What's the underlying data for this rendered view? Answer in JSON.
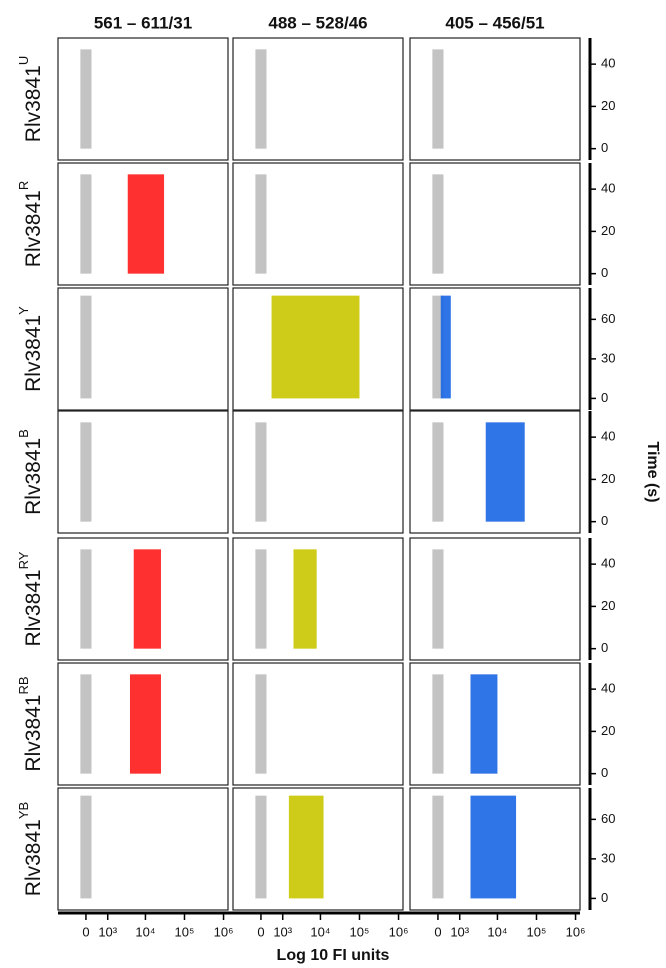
{
  "figure": {
    "columns": [
      "561 – 611/31",
      "488 – 528/46",
      "405 – 456/51"
    ],
    "x_label": "Log 10 FI units",
    "y_label": "Time (s)",
    "xlim": [
      -1500,
      1300000
    ],
    "xticks": [
      0,
      {
        "value": 1000,
        "label": "10³"
      },
      {
        "value": 10000,
        "label": "10⁴"
      },
      {
        "value": 100000,
        "label": "10⁵"
      },
      {
        "value": 1000000,
        "label": "10⁶"
      }
    ],
    "rows": [
      {
        "name": "Rlv3841",
        "sup": "U",
        "ylim": [
          -3,
          50
        ],
        "yticks": [
          0,
          20,
          40
        ],
        "panels": [
          [
            {
              "range": [
                -200,
                200
              ],
              "time": [
                0,
                47
              ],
              "color": "#bdbdbd"
            }
          ],
          [
            {
              "range": [
                -200,
                200
              ],
              "time": [
                0,
                47
              ],
              "color": "#bdbdbd"
            }
          ],
          [
            {
              "range": [
                -200,
                200
              ],
              "time": [
                0,
                47
              ],
              "color": "#bdbdbd"
            }
          ]
        ]
      },
      {
        "name": "Rlv3841",
        "sup": "R",
        "ylim": [
          -3,
          50
        ],
        "yticks": [
          0,
          20,
          40
        ],
        "panels": [
          [
            {
              "range": [
                -200,
                200
              ],
              "time": [
                0,
                47
              ],
              "color": "#bdbdbd"
            },
            {
              "range": [
                3500,
                30000
              ],
              "time": [
                0,
                47
              ],
              "color": "#ff1a1a"
            }
          ],
          [
            {
              "range": [
                -200,
                200
              ],
              "time": [
                0,
                47
              ],
              "color": "#bdbdbd"
            }
          ],
          [
            {
              "range": [
                -200,
                200
              ],
              "time": [
                0,
                47
              ],
              "color": "#bdbdbd"
            }
          ]
        ]
      },
      {
        "name": "Rlv3841",
        "sup": "Y",
        "ylim": [
          -5,
          80
        ],
        "yticks": [
          0,
          30,
          60
        ],
        "panels": [
          [
            {
              "range": [
                -200,
                200
              ],
              "time": [
                0,
                78
              ],
              "color": "#bdbdbd"
            }
          ],
          [
            {
              "range": [
                400,
                100000
              ],
              "time": [
                0,
                78
              ],
              "color": "#c9c700"
            }
          ],
          [
            {
              "range": [
                -200,
                200
              ],
              "time": [
                0,
                78
              ],
              "color": "#bdbdbd"
            },
            {
              "range": [
                100,
                500
              ],
              "time": [
                0,
                78
              ],
              "color": "#1a66e6"
            }
          ]
        ]
      },
      {
        "name": "Rlv3841",
        "sup": "B",
        "ylim": [
          -3,
          50
        ],
        "yticks": [
          0,
          20,
          40
        ],
        "panels": [
          [
            {
              "range": [
                -200,
                200
              ],
              "time": [
                0,
                47
              ],
              "color": "#bdbdbd"
            }
          ],
          [
            {
              "range": [
                -200,
                200
              ],
              "time": [
                0,
                47
              ],
              "color": "#bdbdbd"
            }
          ],
          [
            {
              "range": [
                -200,
                200
              ],
              "time": [
                0,
                47
              ],
              "color": "#bdbdbd"
            },
            {
              "range": [
                5000,
                50000
              ],
              "time": [
                0,
                47
              ],
              "color": "#1a66e6"
            }
          ]
        ]
      },
      {
        "name": "Rlv3841",
        "sup": "RY",
        "ylim": [
          -3,
          50
        ],
        "yticks": [
          0,
          20,
          40
        ],
        "panels": [
          [
            {
              "range": [
                -200,
                200
              ],
              "time": [
                0,
                47
              ],
              "color": "#bdbdbd"
            },
            {
              "range": [
                5000,
                25000
              ],
              "time": [
                0,
                47
              ],
              "color": "#ff1a1a"
            }
          ],
          [
            {
              "range": [
                -200,
                200
              ],
              "time": [
                0,
                47
              ],
              "color": "#bdbdbd"
            },
            {
              "range": [
                2000,
                8000
              ],
              "time": [
                0,
                47
              ],
              "color": "#c9c700"
            }
          ],
          [
            {
              "range": [
                -200,
                200
              ],
              "time": [
                0,
                47
              ],
              "color": "#bdbdbd"
            }
          ]
        ]
      },
      {
        "name": "Rlv3841",
        "sup": "RB",
        "ylim": [
          -3,
          50
        ],
        "yticks": [
          0,
          20,
          40
        ],
        "panels": [
          [
            {
              "range": [
                -200,
                200
              ],
              "time": [
                0,
                47
              ],
              "color": "#bdbdbd"
            },
            {
              "range": [
                4000,
                25000
              ],
              "time": [
                0,
                47
              ],
              "color": "#ff1a1a"
            }
          ],
          [
            {
              "range": [
                -200,
                200
              ],
              "time": [
                0,
                47
              ],
              "color": "#bdbdbd"
            }
          ],
          [
            {
              "range": [
                -200,
                200
              ],
              "time": [
                0,
                47
              ],
              "color": "#bdbdbd"
            },
            {
              "range": [
                2000,
                10000
              ],
              "time": [
                0,
                47
              ],
              "color": "#1a66e6"
            }
          ]
        ]
      },
      {
        "name": "Rlv3841",
        "sup": "YB",
        "ylim": [
          -5,
          80
        ],
        "yticks": [
          0,
          30,
          60
        ],
        "panels": [
          [
            {
              "range": [
                -200,
                200
              ],
              "time": [
                0,
                78
              ],
              "color": "#bdbdbd"
            }
          ],
          [
            {
              "range": [
                -200,
                200
              ],
              "time": [
                0,
                78
              ],
              "color": "#bdbdbd"
            },
            {
              "range": [
                1500,
                12000
              ],
              "time": [
                0,
                78
              ],
              "color": "#c9c700"
            }
          ],
          [
            {
              "range": [
                -200,
                200
              ],
              "time": [
                0,
                78
              ],
              "color": "#bdbdbd"
            },
            {
              "range": [
                2000,
                30000
              ],
              "time": [
                0,
                78
              ],
              "color": "#1a66e6"
            }
          ]
        ]
      }
    ]
  }
}
